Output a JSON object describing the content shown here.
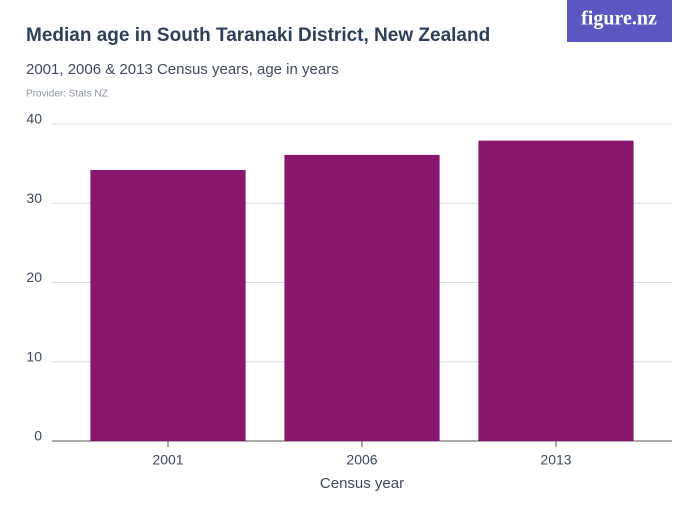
{
  "logo": "figure.nz",
  "chart_data": {
    "type": "bar",
    "title": "Median age in South Taranaki District, New Zealand",
    "subtitle": "2001, 2006 & 2013 Census years, age in years",
    "source": "Provider: Stats NZ",
    "x_label": "Census year",
    "categories": [
      "2001",
      "2006",
      "2013"
    ],
    "values": [
      34.2,
      36.1,
      37.9
    ],
    "color": "#88166c",
    "ylim": [
      0,
      40
    ],
    "yticks": [
      0,
      10,
      20,
      30,
      40
    ],
    "grid": true
  }
}
